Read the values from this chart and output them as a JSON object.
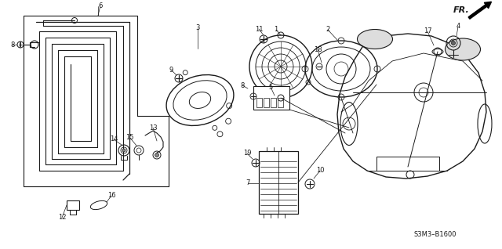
{
  "bg_color": "#ffffff",
  "diagram_code": "S3M3–B1600",
  "fr_label": "FR.",
  "line_color": "#1a1a1a",
  "text_color": "#1a1a1a"
}
